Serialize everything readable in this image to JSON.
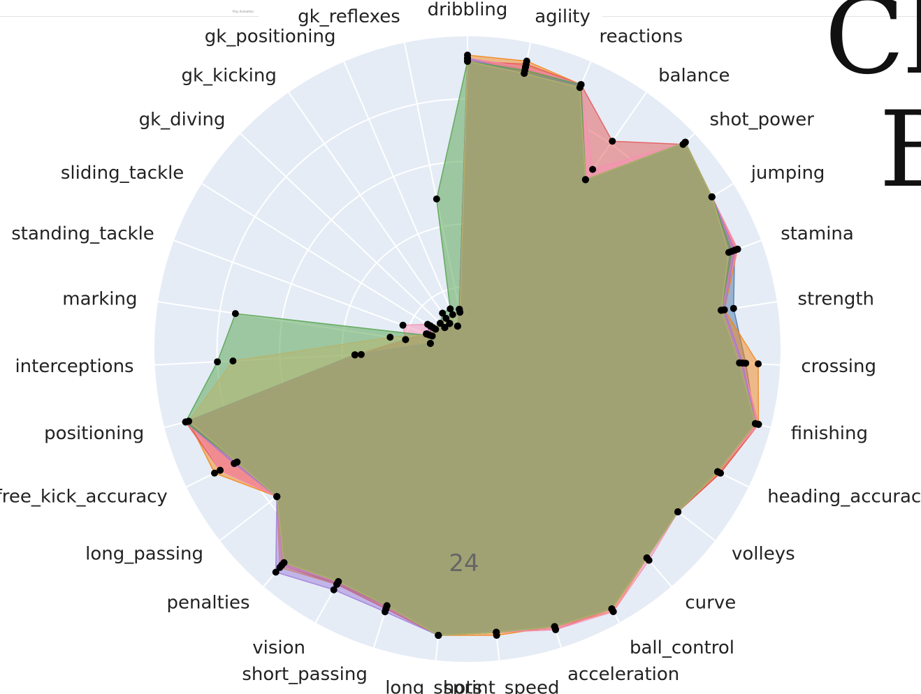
{
  "corner_text": {
    "line1": "Cl",
    "line2": "B"
  },
  "toolbar_hint": "Play Animation",
  "chart_data": {
    "type": "radar",
    "center_label": "24",
    "angular_direction": "clockwise",
    "start_axis_at": "top",
    "radial_range": [
      0,
      100
    ],
    "grid": true,
    "categories": [
      "dribbling",
      "agility",
      "reactions",
      "balance",
      "shot_power",
      "jumping",
      "stamina",
      "strength",
      "crossing",
      "finishing",
      "heading_accuracy",
      "volleys",
      "curve",
      "ball_control",
      "acceleration",
      "sprint_speed",
      "long_shots",
      "short_passing",
      "vision",
      "penalties",
      "long_passing",
      "free_kick_accuracy",
      "positioning",
      "interceptions",
      "marking",
      "standing_tackle",
      "sliding_tackle",
      "gk_diving",
      "gk_kicking",
      "gk_positioning",
      "gk_reflexes"
    ],
    "series": [
      {
        "color": "#4C78A8",
        "values": [
          93,
          92,
          92,
          66,
          96,
          92,
          91,
          86,
          89,
          95,
          89,
          85,
          88,
          95,
          93,
          91,
          92,
          86,
          86,
          91,
          77,
          83,
          93,
          36,
          12,
          14,
          14,
          10,
          10,
          8,
          13
        ]
      },
      {
        "color": "#F58518",
        "values": [
          94,
          94,
          92,
          66,
          96,
          92,
          92,
          83,
          93,
          96,
          90,
          85,
          88,
          96,
          93,
          92,
          92,
          87,
          86,
          92,
          77,
          90,
          92,
          36,
          12,
          14,
          14,
          10,
          10,
          8,
          13
        ]
      },
      {
        "color": "#E45756",
        "values": [
          92,
          93,
          92,
          81,
          95,
          92,
          92,
          82,
          88,
          96,
          90,
          85,
          88,
          95,
          94,
          91,
          92,
          87,
          86,
          91,
          77,
          88,
          93,
          34,
          20,
          14,
          14,
          10,
          10,
          8,
          13
        ]
      },
      {
        "color": "#F78FB2",
        "values": [
          93,
          92,
          92,
          70,
          96,
          92,
          92,
          82,
          88,
          96,
          89,
          85,
          89,
          96,
          94,
          91,
          92,
          86,
          85,
          91,
          77,
          88,
          92,
          36,
          20,
          22,
          15,
          10,
          10,
          8,
          13
        ]
      },
      {
        "color": "#9D7BD8",
        "values": [
          93,
          90,
          92,
          66,
          96,
          92,
          91,
          83,
          88,
          95,
          89,
          85,
          88,
          95,
          93,
          91,
          92,
          88,
          88,
          94,
          77,
          83,
          93,
          36,
          12,
          14,
          14,
          10,
          10,
          8,
          13
        ]
      },
      {
        "color": "#54A24B",
        "values": [
          92,
          91,
          92,
          66,
          96,
          92,
          90,
          82,
          87,
          95,
          89,
          85,
          88,
          95,
          93,
          91,
          92,
          86,
          85,
          90,
          77,
          82,
          93,
          80,
          75,
          12,
          12,
          12,
          14,
          14,
          49
        ]
      },
      {
        "color": "#B8B46A",
        "values": [
          92,
          90,
          91,
          66,
          96,
          92,
          89,
          82,
          87,
          95,
          89,
          85,
          88,
          95,
          93,
          91,
          92,
          86,
          85,
          90,
          77,
          82,
          92,
          75,
          25,
          13,
          13,
          12,
          12,
          12,
          12
        ]
      }
    ]
  }
}
